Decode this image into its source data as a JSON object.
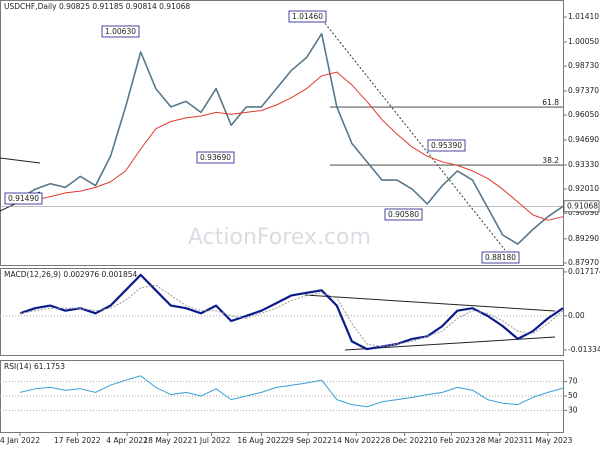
{
  "chart_data": [
    {
      "type": "line",
      "title": "USDCHF,Daily 0.90825 0.91185 0.90814 0.91068",
      "watermark": "ActionForex.com",
      "x": [
        0,
        1,
        2,
        3,
        4,
        5,
        6,
        7,
        8,
        9,
        10,
        11,
        12,
        13,
        14,
        15,
        16,
        17,
        18,
        19,
        20,
        21,
        22,
        23,
        24,
        25,
        26,
        27,
        28,
        29,
        30,
        31,
        32,
        33,
        34,
        35,
        36
      ],
      "xlim": [
        -1.33,
        36
      ],
      "xticks": [
        {
          "value": 0,
          "label": "4 Jan 2022"
        },
        {
          "value": 3.8,
          "label": "17 Feb 2022"
        },
        {
          "value": 7.1,
          "label": "4 Apr 2022"
        },
        {
          "value": 9.8,
          "label": "18 May 2022"
        },
        {
          "value": 12.7,
          "label": "1 Jul 2022"
        },
        {
          "value": 16,
          "label": "16 Aug 2022"
        },
        {
          "value": 19.1,
          "label": "29 Sep 2022"
        },
        {
          "value": 22.3,
          "label": "14 Nov 2022"
        },
        {
          "value": 25.5,
          "label": "28 Dec 2022"
        },
        {
          "value": 28.6,
          "label": "10 Feb 2023"
        },
        {
          "value": 31.8,
          "label": "28 Mar 2023"
        },
        {
          "value": 35,
          "label": "11 May 2023"
        }
      ],
      "series": [
        {
          "color": "#56788a",
          "values": [
            0.915,
            0.92,
            0.923,
            0.921,
            0.927,
            0.922,
            0.938,
            0.965,
            0.995,
            0.975,
            0.965,
            0.968,
            0.962,
            0.975,
            0.955,
            0.965,
            0.965,
            0.975,
            0.985,
            0.992,
            1.005,
            0.965,
            0.945,
            0.935,
            0.925,
            0.925,
            0.92,
            0.912,
            0.922,
            0.93,
            0.925,
            0.91,
            0.895,
            0.89,
            0.898,
            0.905,
            0.9107
          ]
        },
        {
          "color": "#e0392b",
          "values": [
            0.912,
            0.914,
            0.916,
            0.918,
            0.919,
            0.921,
            0.924,
            0.93,
            0.942,
            0.953,
            0.957,
            0.959,
            0.96,
            0.962,
            0.961,
            0.962,
            0.963,
            0.966,
            0.97,
            0.975,
            0.982,
            0.984,
            0.977,
            0.968,
            0.958,
            0.95,
            0.943,
            0.938,
            0.935,
            0.933,
            0.93,
            0.926,
            0.92,
            0.913,
            0.906,
            0.903,
            0.905
          ]
        }
      ],
      "ylim": [
        0.8786,
        1.0234
      ],
      "yticks": [
        {
          "value": 1.0141,
          "label": "1.01410"
        },
        {
          "value": 1.0005,
          "label": "1.00050"
        },
        {
          "value": 0.9873,
          "label": "0.98730"
        },
        {
          "value": 0.9737,
          "label": "0.97370"
        },
        {
          "value": 0.9605,
          "label": "0.96050"
        },
        {
          "value": 0.9469,
          "label": "0.94690"
        },
        {
          "value": 0.9333,
          "label": "0.93330"
        },
        {
          "value": 0.9201,
          "label": "0.92010"
        },
        {
          "value": 0.9069,
          "label": "0.90690"
        },
        {
          "value": 0.8929,
          "label": "0.89290"
        },
        {
          "value": 0.8797,
          "label": "0.87970"
        }
      ],
      "levels": [
        {
          "value": 0.9649,
          "label": "61.8"
        },
        {
          "value": 0.9332,
          "label": "38.2"
        }
      ],
      "last_price": {
        "value": 0.91068,
        "label": "0.91068"
      },
      "annotations": [
        "1.00630",
        "1.01460",
        "0.93690",
        "0.90580",
        "0.95390",
        "0.88180",
        "0.91490"
      ]
    },
    {
      "type": "line",
      "title": "MACD(12,26,9) 0.002976 0.001854",
      "x": [
        0,
        1,
        2,
        3,
        4,
        5,
        6,
        7,
        8,
        9,
        10,
        11,
        12,
        13,
        14,
        15,
        16,
        17,
        18,
        19,
        20,
        21,
        22,
        23,
        24,
        25,
        26,
        27,
        28,
        29,
        30,
        31,
        32,
        33,
        34,
        35,
        36
      ],
      "xlim": [
        -1.33,
        36
      ],
      "series": [
        {
          "color": "#0a1a8c",
          "values": [
            0.001,
            0.003,
            0.004,
            0.002,
            0.003,
            0.001,
            0.004,
            0.01,
            0.016,
            0.01,
            0.004,
            0.003,
            0.001,
            0.004,
            -0.002,
            0.0,
            0.002,
            0.005,
            0.008,
            0.009,
            0.01,
            0.004,
            -0.01,
            -0.013,
            -0.012,
            -0.011,
            -0.009,
            -0.008,
            -0.004,
            0.002,
            0.003,
            0.0,
            -0.004,
            -0.009,
            -0.006,
            -0.001,
            0.003
          ]
        },
        {
          "color": "#9a9a9a",
          "values": [
            0.001,
            0.002,
            0.003,
            0.003,
            0.003,
            0.002,
            0.003,
            0.006,
            0.011,
            0.012,
            0.008,
            0.004,
            0.002,
            0.002,
            0.0,
            -0.001,
            0.001,
            0.003,
            0.006,
            0.008,
            0.009,
            0.007,
            -0.003,
            -0.011,
            -0.012,
            -0.011,
            -0.01,
            -0.008,
            -0.006,
            -0.001,
            0.002,
            0.001,
            -0.002,
            -0.006,
            -0.007,
            -0.003,
            0.002
          ]
        }
      ],
      "ylim": [
        -0.0153,
        0.0187
      ],
      "yticks": [
        0.017174,
        {
          "value": 0,
          "label": "0.00"
        },
        -0.01334
      ]
    },
    {
      "type": "line",
      "title": "RSI(14) 61.1753",
      "x": [
        0,
        1,
        2,
        3,
        4,
        5,
        6,
        7,
        8,
        9,
        10,
        11,
        12,
        13,
        14,
        15,
        16,
        17,
        18,
        19,
        20,
        21,
        22,
        23,
        24,
        25,
        26,
        27,
        28,
        29,
        30,
        31,
        32,
        33,
        34,
        35,
        36
      ],
      "xlim": [
        -1.33,
        36
      ],
      "series": [
        {
          "color": "#3aa0d8",
          "values": [
            55,
            60,
            62,
            58,
            60,
            55,
            65,
            72,
            78,
            62,
            52,
            55,
            50,
            60,
            45,
            50,
            55,
            62,
            65,
            68,
            72,
            45,
            38,
            35,
            42,
            45,
            48,
            52,
            55,
            62,
            58,
            45,
            40,
            38,
            48,
            55,
            61
          ]
        }
      ],
      "ylim": [
        0,
        100
      ],
      "yticks": [
        70,
        50,
        30
      ],
      "grid": true
    }
  ]
}
